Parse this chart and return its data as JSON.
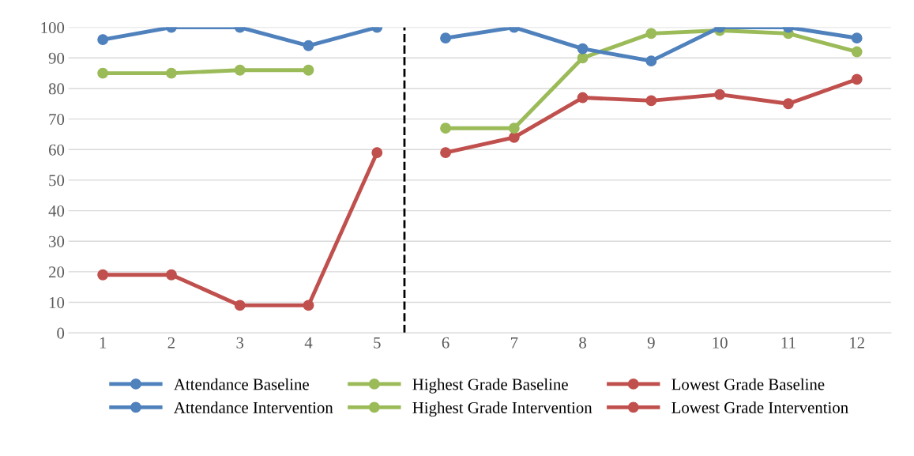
{
  "chart_data": {
    "type": "line",
    "xlim": [
      0.5,
      12.5
    ],
    "xticks": [
      1,
      2,
      3,
      4,
      5,
      6,
      7,
      8,
      9,
      10,
      11,
      12
    ],
    "ylim": [
      0,
      100
    ],
    "yticks": [
      0,
      10,
      20,
      30,
      40,
      50,
      60,
      70,
      80,
      90,
      100
    ],
    "grid": "y",
    "legend": "bottom",
    "marker": "circle",
    "line_style": "solid",
    "series": [
      {
        "name": "Attendance Baseline",
        "color": "#4f81bd",
        "x": [
          1,
          2,
          3,
          4,
          5
        ],
        "values": [
          96,
          100,
          100,
          94,
          100
        ]
      },
      {
        "name": "Attendance Intervention",
        "color": "#4f81bd",
        "x": [
          6,
          7,
          8,
          9,
          10,
          11,
          12
        ],
        "values": [
          96.5,
          100,
          93,
          89,
          100,
          100,
          96.5
        ]
      },
      {
        "name": "Highest Grade Baseline",
        "color": "#9bbb59",
        "x": [
          1,
          2,
          3,
          4
        ],
        "values": [
          85,
          85,
          86,
          86
        ]
      },
      {
        "name": "Highest Grade Intervention",
        "color": "#9bbb59",
        "x": [
          6,
          7,
          8,
          9,
          10,
          11,
          12
        ],
        "values": [
          67,
          67,
          90,
          98,
          99,
          98,
          92
        ]
      },
      {
        "name": "Lowest Grade Baseline",
        "color": "#c0504d",
        "x": [
          1,
          2,
          3,
          4,
          5
        ],
        "values": [
          19,
          19,
          9,
          9,
          59
        ]
      },
      {
        "name": "Lowest Grade Intervention",
        "color": "#c0504d",
        "x": [
          6,
          7,
          8,
          9,
          10,
          11,
          12
        ],
        "values": [
          59,
          64,
          77,
          76,
          78,
          75,
          83
        ]
      }
    ],
    "ref_lines": [
      {
        "axis": "x",
        "value": 5.4,
        "color": "#000000",
        "line_style": "dashed"
      }
    ]
  }
}
